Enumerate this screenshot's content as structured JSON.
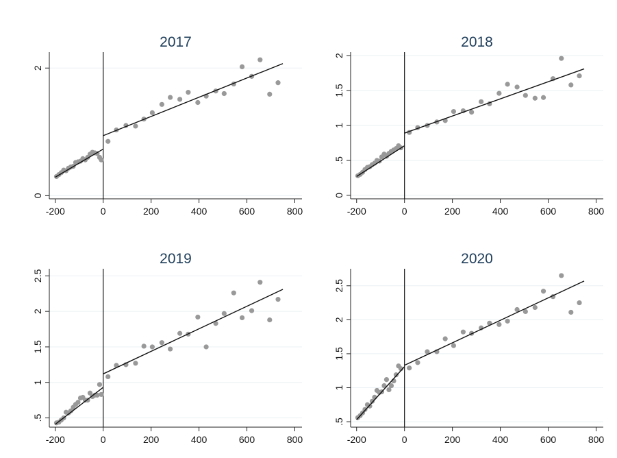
{
  "chart_data": [
    {
      "type": "scatter",
      "title": "2017",
      "xticks": [
        -200,
        0,
        200,
        400,
        600,
        800
      ],
      "yticks": [
        0,
        2
      ],
      "ytick_labels": [
        "0",
        "2"
      ],
      "xlim": [
        -225,
        830
      ],
      "ylim": [
        -0.05,
        2.25
      ],
      "grid": true,
      "cutoff": 0,
      "fit_left": [
        [
          -200,
          0.29
        ],
        [
          0,
          0.73
        ]
      ],
      "fit_right": [
        [
          0,
          0.94
        ],
        [
          750,
          2.07
        ]
      ],
      "points": [
        [
          -195,
          0.3
        ],
        [
          -185,
          0.33
        ],
        [
          -175,
          0.36
        ],
        [
          -165,
          0.4
        ],
        [
          -155,
          0.39
        ],
        [
          -145,
          0.43
        ],
        [
          -135,
          0.45
        ],
        [
          -125,
          0.46
        ],
        [
          -115,
          0.52
        ],
        [
          -105,
          0.53
        ],
        [
          -95,
          0.54
        ],
        [
          -85,
          0.58
        ],
        [
          -75,
          0.56
        ],
        [
          -65,
          0.6
        ],
        [
          -55,
          0.65
        ],
        [
          -45,
          0.68
        ],
        [
          -35,
          0.67
        ],
        [
          -25,
          0.66
        ],
        [
          -15,
          0.6
        ],
        [
          -8,
          0.56
        ],
        [
          20,
          0.85
        ],
        [
          55,
          1.03
        ],
        [
          95,
          1.1
        ],
        [
          135,
          1.09
        ],
        [
          170,
          1.2
        ],
        [
          205,
          1.3
        ],
        [
          245,
          1.43
        ],
        [
          280,
          1.54
        ],
        [
          320,
          1.51
        ],
        [
          355,
          1.62
        ],
        [
          395,
          1.46
        ],
        [
          430,
          1.56
        ],
        [
          470,
          1.64
        ],
        [
          505,
          1.6
        ],
        [
          545,
          1.75
        ],
        [
          580,
          2.02
        ],
        [
          620,
          1.87
        ],
        [
          655,
          2.13
        ],
        [
          695,
          1.59
        ],
        [
          730,
          1.77
        ]
      ]
    },
    {
      "type": "scatter",
      "title": "2018",
      "xticks": [
        -200,
        0,
        200,
        400,
        600,
        800
      ],
      "yticks": [
        0,
        0.5,
        1,
        1.5,
        2
      ],
      "ytick_labels": [
        "0",
        ".5",
        "1",
        "1.5",
        "2"
      ],
      "xlim": [
        -225,
        830
      ],
      "ylim": [
        -0.05,
        2.05
      ],
      "grid": true,
      "cutoff": 0,
      "fit_left": [
        [
          -200,
          0.27
        ],
        [
          0,
          0.71
        ]
      ],
      "fit_right": [
        [
          0,
          0.89
        ],
        [
          750,
          1.81
        ]
      ],
      "points": [
        [
          -195,
          0.28
        ],
        [
          -185,
          0.3
        ],
        [
          -175,
          0.33
        ],
        [
          -165,
          0.37
        ],
        [
          -155,
          0.4
        ],
        [
          -145,
          0.41
        ],
        [
          -135,
          0.44
        ],
        [
          -125,
          0.46
        ],
        [
          -115,
          0.5
        ],
        [
          -105,
          0.49
        ],
        [
          -95,
          0.55
        ],
        [
          -85,
          0.59
        ],
        [
          -75,
          0.56
        ],
        [
          -65,
          0.6
        ],
        [
          -55,
          0.63
        ],
        [
          -45,
          0.65
        ],
        [
          -35,
          0.67
        ],
        [
          -25,
          0.71
        ],
        [
          -15,
          0.68
        ],
        [
          20,
          0.9
        ],
        [
          55,
          0.97
        ],
        [
          95,
          1.0
        ],
        [
          135,
          1.05
        ],
        [
          170,
          1.07
        ],
        [
          205,
          1.2
        ],
        [
          245,
          1.21
        ],
        [
          280,
          1.19
        ],
        [
          320,
          1.34
        ],
        [
          355,
          1.31
        ],
        [
          395,
          1.46
        ],
        [
          430,
          1.59
        ],
        [
          470,
          1.55
        ],
        [
          505,
          1.43
        ],
        [
          545,
          1.39
        ],
        [
          580,
          1.4
        ],
        [
          620,
          1.67
        ],
        [
          655,
          1.96
        ],
        [
          695,
          1.58
        ],
        [
          730,
          1.71
        ]
      ]
    },
    {
      "type": "scatter",
      "title": "2019",
      "xticks": [
        -200,
        0,
        200,
        400,
        600,
        800
      ],
      "yticks": [
        0.5,
        1,
        1.5,
        2,
        2.5
      ],
      "ytick_labels": [
        ".5",
        "1",
        "1.5",
        "2",
        "2.5"
      ],
      "xlim": [
        -225,
        830
      ],
      "ylim": [
        0.37,
        2.6
      ],
      "grid": true,
      "cutoff": 0,
      "fit_left": [
        [
          -200,
          0.41
        ],
        [
          0,
          0.93
        ]
      ],
      "fit_right": [
        [
          0,
          1.12
        ],
        [
          750,
          2.31
        ]
      ],
      "points": [
        [
          -195,
          0.43
        ],
        [
          -185,
          0.44
        ],
        [
          -175,
          0.47
        ],
        [
          -165,
          0.5
        ],
        [
          -155,
          0.58
        ],
        [
          -145,
          0.57
        ],
        [
          -135,
          0.6
        ],
        [
          -125,
          0.65
        ],
        [
          -115,
          0.69
        ],
        [
          -105,
          0.72
        ],
        [
          -95,
          0.78
        ],
        [
          -85,
          0.79
        ],
        [
          -75,
          0.75
        ],
        [
          -65,
          0.75
        ],
        [
          -55,
          0.85
        ],
        [
          -45,
          0.8
        ],
        [
          -35,
          0.82
        ],
        [
          -25,
          0.82
        ],
        [
          -15,
          0.97
        ],
        [
          -8,
          0.83
        ],
        [
          20,
          1.08
        ],
        [
          55,
          1.24
        ],
        [
          95,
          1.25
        ],
        [
          135,
          1.27
        ],
        [
          170,
          1.51
        ],
        [
          205,
          1.5
        ],
        [
          245,
          1.56
        ],
        [
          280,
          1.47
        ],
        [
          320,
          1.69
        ],
        [
          355,
          1.68
        ],
        [
          395,
          1.92
        ],
        [
          430,
          1.5
        ],
        [
          470,
          1.83
        ],
        [
          505,
          1.97
        ],
        [
          545,
          2.26
        ],
        [
          580,
          1.91
        ],
        [
          620,
          2.01
        ],
        [
          655,
          2.41
        ],
        [
          695,
          1.88
        ],
        [
          730,
          2.17
        ]
      ]
    },
    {
      "type": "scatter",
      "title": "2020",
      "xticks": [
        -200,
        0,
        200,
        400,
        600,
        800
      ],
      "yticks": [
        0.5,
        1,
        1.5,
        2,
        2.5
      ],
      "ytick_labels": [
        ".5",
        "1",
        "1.5",
        "2",
        "2.5"
      ],
      "xlim": [
        -225,
        830
      ],
      "ylim": [
        0.42,
        2.75
      ],
      "grid": true,
      "cutoff": 0,
      "fit_left": [
        [
          -200,
          0.53
        ],
        [
          0,
          1.31
        ]
      ],
      "fit_right": [
        [
          0,
          1.33
        ],
        [
          750,
          2.57
        ]
      ],
      "points": [
        [
          -195,
          0.56
        ],
        [
          -185,
          0.59
        ],
        [
          -175,
          0.63
        ],
        [
          -165,
          0.68
        ],
        [
          -155,
          0.75
        ],
        [
          -145,
          0.73
        ],
        [
          -135,
          0.8
        ],
        [
          -125,
          0.86
        ],
        [
          -115,
          0.96
        ],
        [
          -105,
          0.93
        ],
        [
          -95,
          0.94
        ],
        [
          -85,
          1.03
        ],
        [
          -75,
          1.12
        ],
        [
          -65,
          0.97
        ],
        [
          -55,
          1.03
        ],
        [
          -45,
          1.1
        ],
        [
          -35,
          1.19
        ],
        [
          -25,
          1.32
        ],
        [
          -15,
          1.28
        ],
        [
          20,
          1.29
        ],
        [
          55,
          1.37
        ],
        [
          95,
          1.53
        ],
        [
          135,
          1.53
        ],
        [
          170,
          1.72
        ],
        [
          205,
          1.62
        ],
        [
          245,
          1.82
        ],
        [
          280,
          1.8
        ],
        [
          320,
          1.88
        ],
        [
          355,
          1.95
        ],
        [
          395,
          1.93
        ],
        [
          430,
          1.98
        ],
        [
          470,
          2.15
        ],
        [
          505,
          2.12
        ],
        [
          545,
          2.18
        ],
        [
          580,
          2.42
        ],
        [
          620,
          2.34
        ],
        [
          655,
          2.65
        ],
        [
          695,
          2.11
        ],
        [
          730,
          2.25
        ]
      ]
    }
  ]
}
